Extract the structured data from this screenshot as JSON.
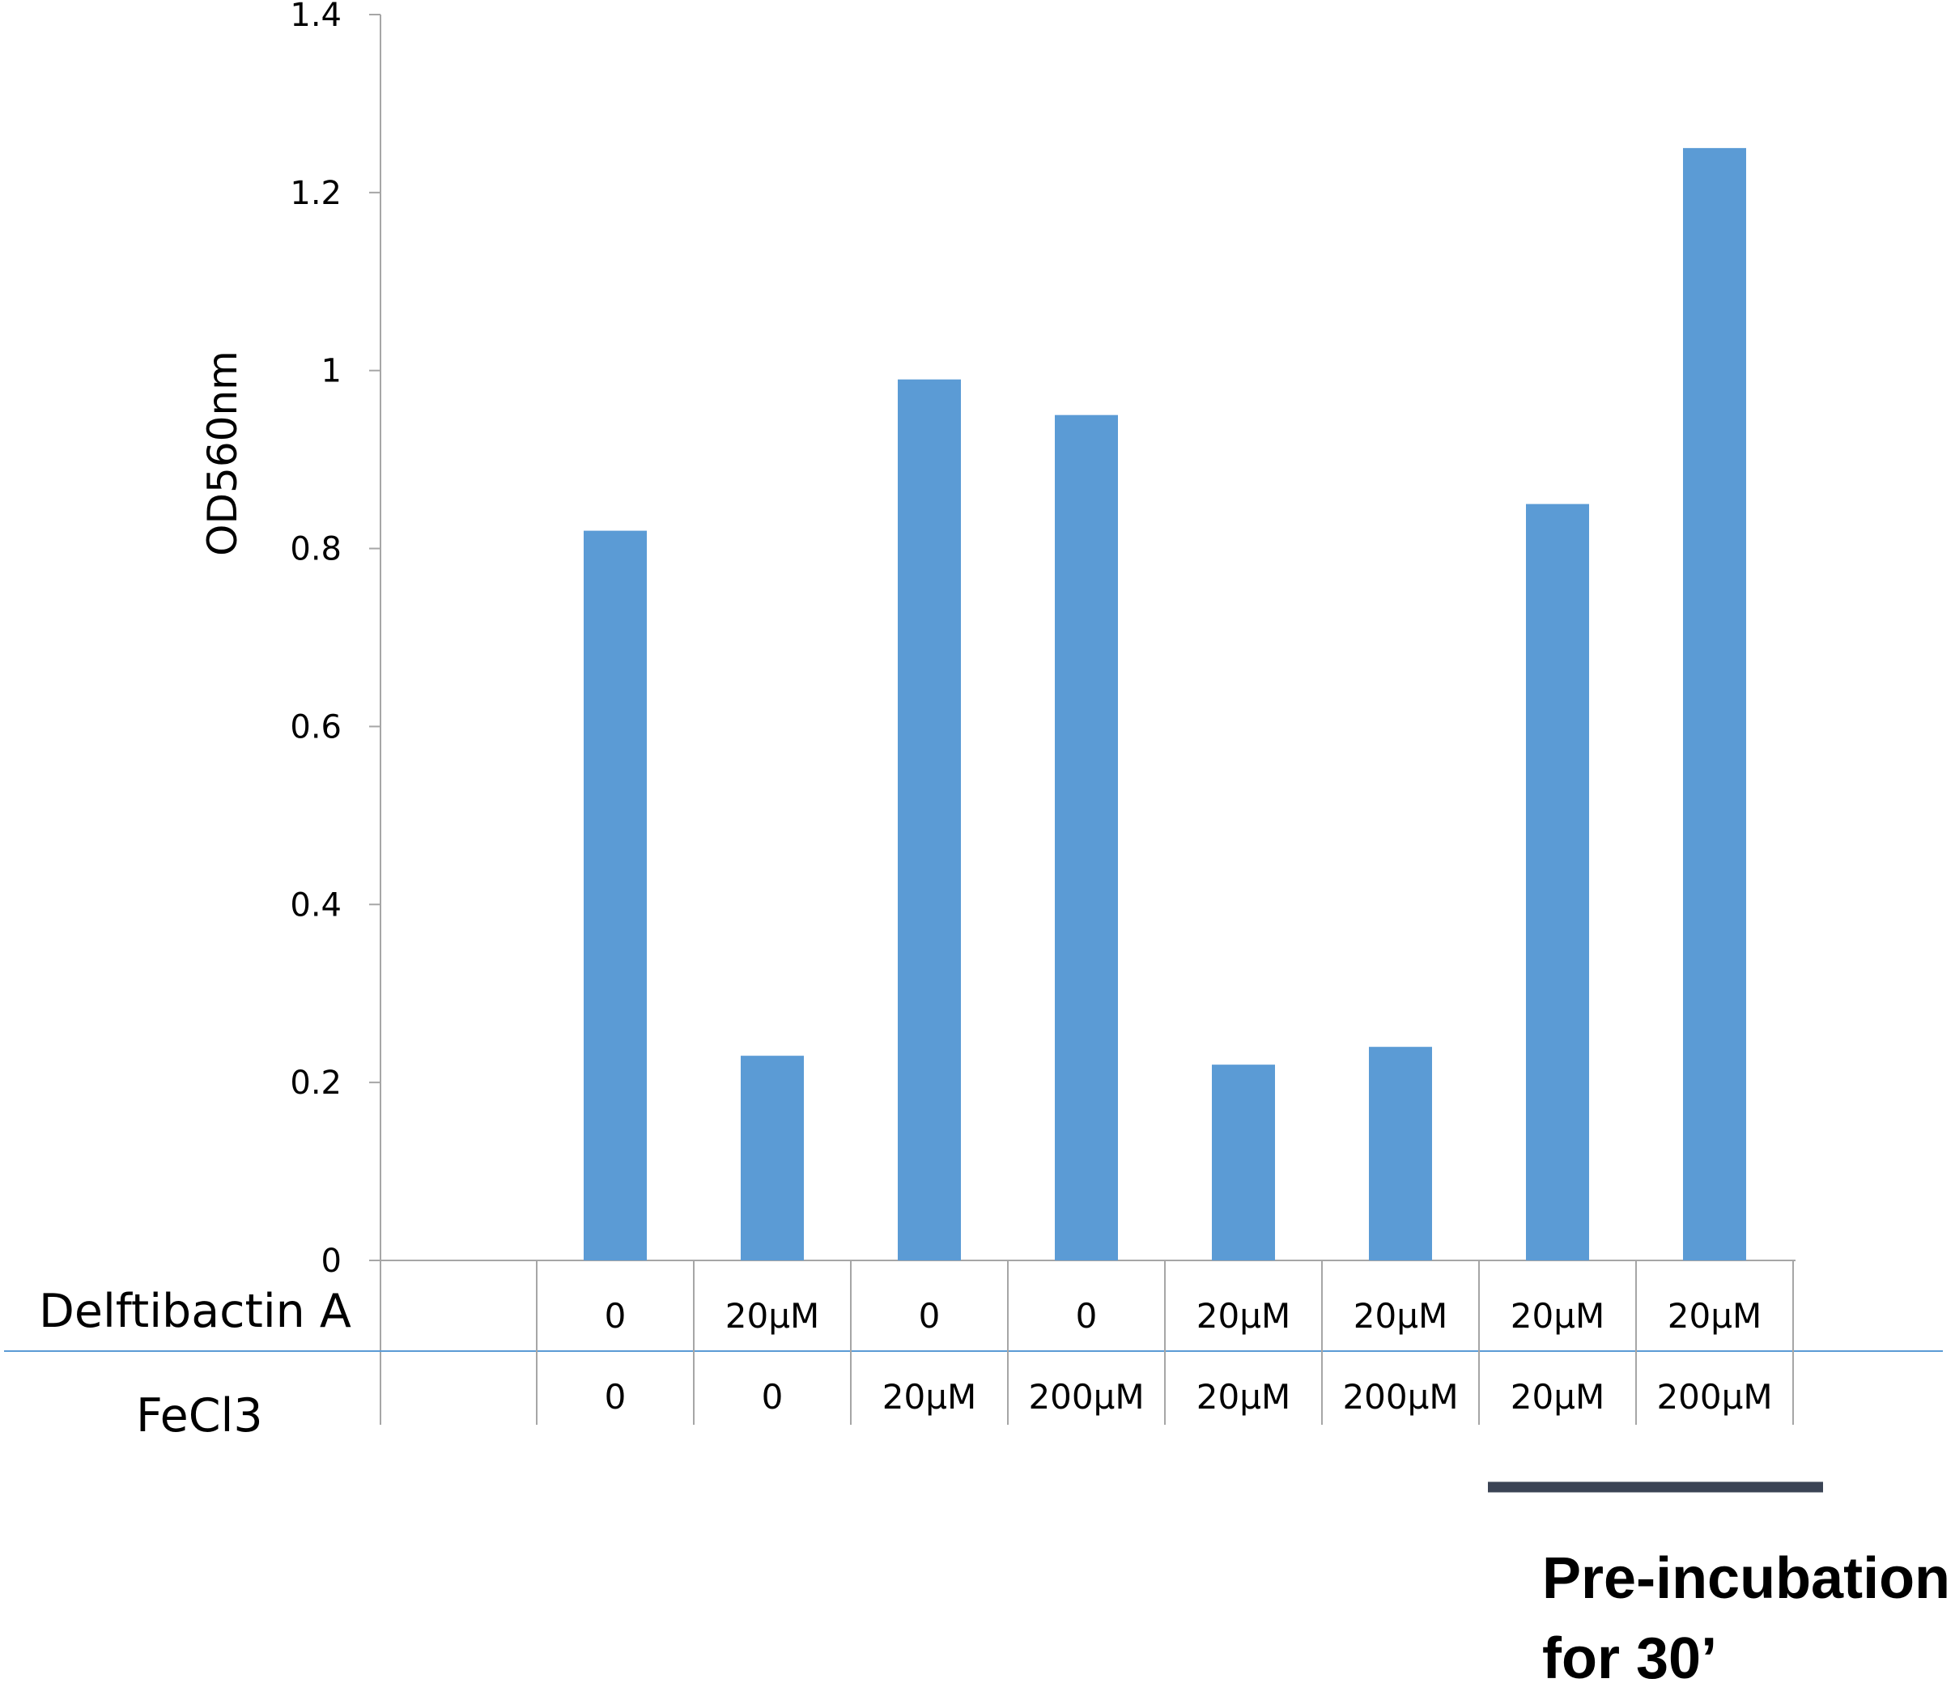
{
  "chart_data": {
    "type": "bar",
    "title": "",
    "xlabel": "",
    "ylabel": "OD560nm",
    "ylim": [
      0,
      1.4
    ],
    "yticks": [
      "0",
      "0.2",
      "0.4",
      "0.6",
      "0.8",
      "1",
      "1.2",
      "1.4"
    ],
    "grid": false,
    "bar_color": "#5b9bd5",
    "values": [
      0.82,
      0.23,
      0.99,
      0.95,
      0.22,
      0.24,
      0.85,
      1.25
    ],
    "table": {
      "rows": [
        {
          "label": "Delftibactin A",
          "cells": [
            "0",
            "20μM",
            "0",
            "0",
            "20μM",
            "20μM",
            "20μM",
            "20μM"
          ]
        },
        {
          "label": "FeCl3",
          "cells": [
            "0",
            "0",
            "20μM",
            "200μM",
            "20μM",
            "200μM",
            "20μM",
            "200μM"
          ]
        }
      ]
    },
    "annotation": {
      "line1": "Pre-incubation",
      "line2": "for 30’",
      "spans_bars": [
        6,
        7
      ]
    }
  },
  "colors": {
    "axis": "#a6a6a6",
    "separator": "#5b9bd5",
    "annotation_bar": "#3b4455"
  }
}
